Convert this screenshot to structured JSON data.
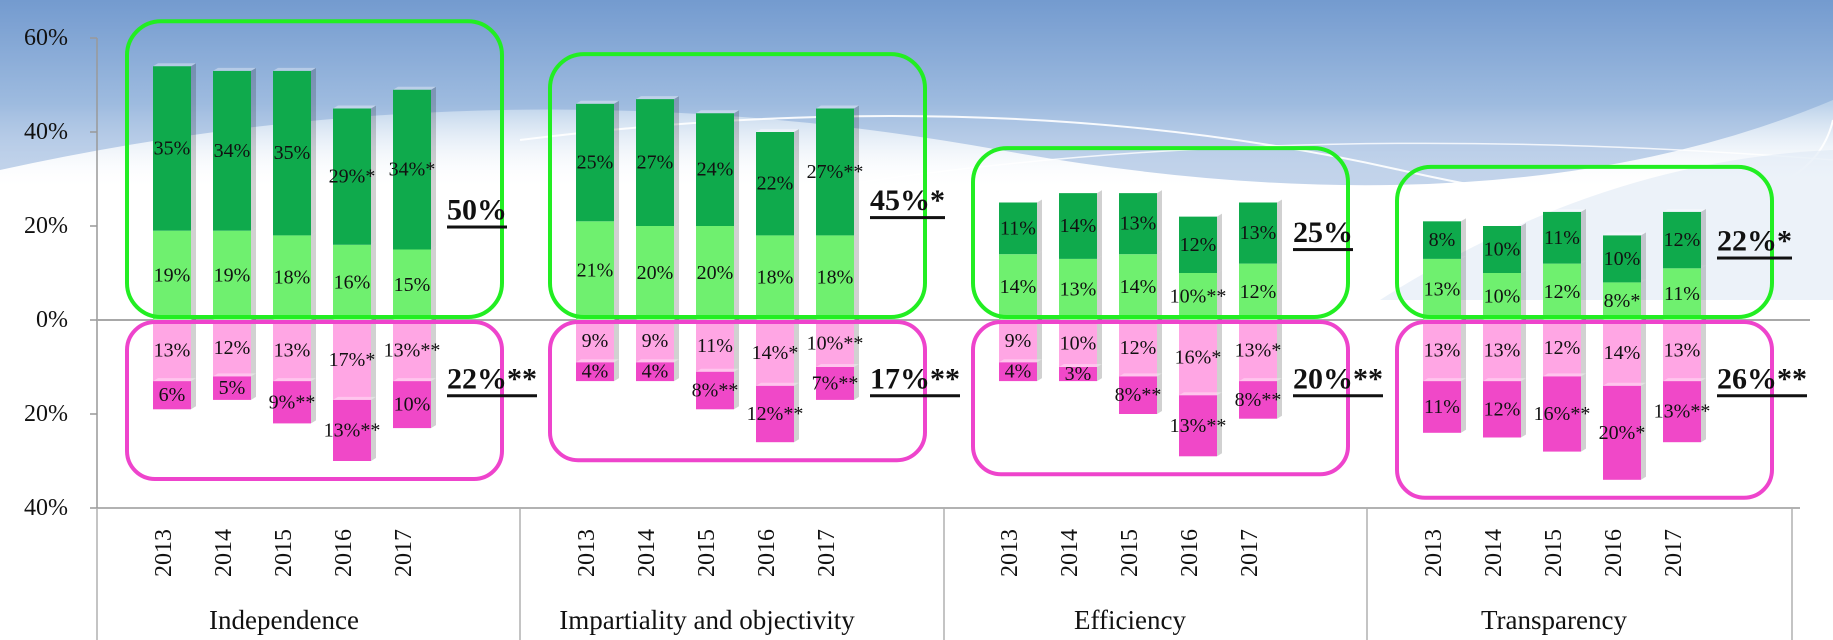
{
  "chart_data": {
    "type": "bar",
    "y_tick_labels": [
      "60%",
      "40%",
      "20%",
      "0%",
      "20%",
      "40%"
    ],
    "y_ticks": [
      60,
      40,
      20,
      0,
      -20,
      -40
    ],
    "ylim": [
      -40,
      60
    ],
    "grid": false,
    "categories": [
      "2013",
      "2014",
      "2015",
      "2016",
      "2017"
    ],
    "colors": {
      "positive_dark": "#0faa4c",
      "positive_light": "#6ff06f",
      "negative_light": "#ffa6e4",
      "negative_dark": "#f048c8",
      "box_positive": "#22ee22",
      "box_negative": "#ee44cc",
      "axis": "#999999"
    },
    "groups": [
      {
        "name": "Independence",
        "positive_total": "50%",
        "negative_total": "22%**",
        "pos_light": [
          19,
          19,
          18,
          16,
          15
        ],
        "pos_dark": [
          35,
          34,
          35,
          29,
          34
        ],
        "neg_light": [
          13,
          12,
          13,
          17,
          13
        ],
        "neg_dark": [
          6,
          5,
          9,
          13,
          10
        ],
        "pos_light_labels": [
          "19%",
          "19%",
          "18%",
          "16%",
          "15%"
        ],
        "pos_dark_labels": [
          "35%",
          "34%",
          "35%",
          "29%*",
          "34%*"
        ],
        "neg_light_labels": [
          "13%",
          "12%",
          "13%",
          "17%*",
          "13%**"
        ],
        "neg_dark_labels": [
          "6%",
          "5%",
          "9%**",
          "13%**",
          "10%"
        ]
      },
      {
        "name": "Impartiality and objectivity",
        "positive_total": "45%*",
        "negative_total": "17%**",
        "pos_light": [
          21,
          20,
          20,
          18,
          18
        ],
        "pos_dark": [
          25,
          27,
          24,
          22,
          27
        ],
        "neg_light": [
          9,
          9,
          11,
          14,
          10
        ],
        "neg_dark": [
          4,
          4,
          8,
          12,
          7
        ],
        "pos_light_labels": [
          "21%",
          "20%",
          "20%",
          "18%",
          "18%"
        ],
        "pos_dark_labels": [
          "25%",
          "27%",
          "24%",
          "22%",
          "27%**"
        ],
        "neg_light_labels": [
          "9%",
          "9%",
          "11%",
          "14%*",
          "10%**"
        ],
        "neg_dark_labels": [
          "4%",
          "4%",
          "8%**",
          "12%**",
          "7%**"
        ]
      },
      {
        "name": "Efficiency",
        "positive_total": "25%",
        "negative_total": "20%**",
        "pos_light": [
          14,
          13,
          14,
          10,
          12
        ],
        "pos_dark": [
          11,
          14,
          13,
          12,
          13
        ],
        "neg_light": [
          9,
          10,
          12,
          16,
          13
        ],
        "neg_dark": [
          4,
          3,
          8,
          13,
          8
        ],
        "pos_light_labels": [
          "14%",
          "13%",
          "14%",
          "10%**",
          "12%"
        ],
        "pos_dark_labels": [
          "11%",
          "14%",
          "13%",
          "12%",
          "13%"
        ],
        "neg_light_labels": [
          "9%",
          "10%",
          "12%",
          "16%*",
          "13%*"
        ],
        "neg_dark_labels": [
          "4%",
          "3%",
          "8%**",
          "13%**",
          "8%**"
        ]
      },
      {
        "name": "Transparency",
        "positive_total": "22%*",
        "negative_total": "26%**",
        "pos_light": [
          13,
          10,
          12,
          8,
          11
        ],
        "pos_dark": [
          8,
          10,
          11,
          10,
          12
        ],
        "neg_light": [
          13,
          13,
          12,
          14,
          13
        ],
        "neg_dark": [
          11,
          12,
          16,
          20,
          13
        ],
        "pos_light_labels": [
          "13%",
          "10%",
          "12%",
          "8%*",
          "11%"
        ],
        "pos_dark_labels": [
          "8%",
          "10%",
          "11%",
          "10%",
          "12%"
        ],
        "neg_light_labels": [
          "13%",
          "13%",
          "12%",
          "14%",
          "13%"
        ],
        "neg_dark_labels": [
          "11%",
          "12%",
          "16%**",
          "20%*",
          "13%**"
        ]
      }
    ]
  }
}
